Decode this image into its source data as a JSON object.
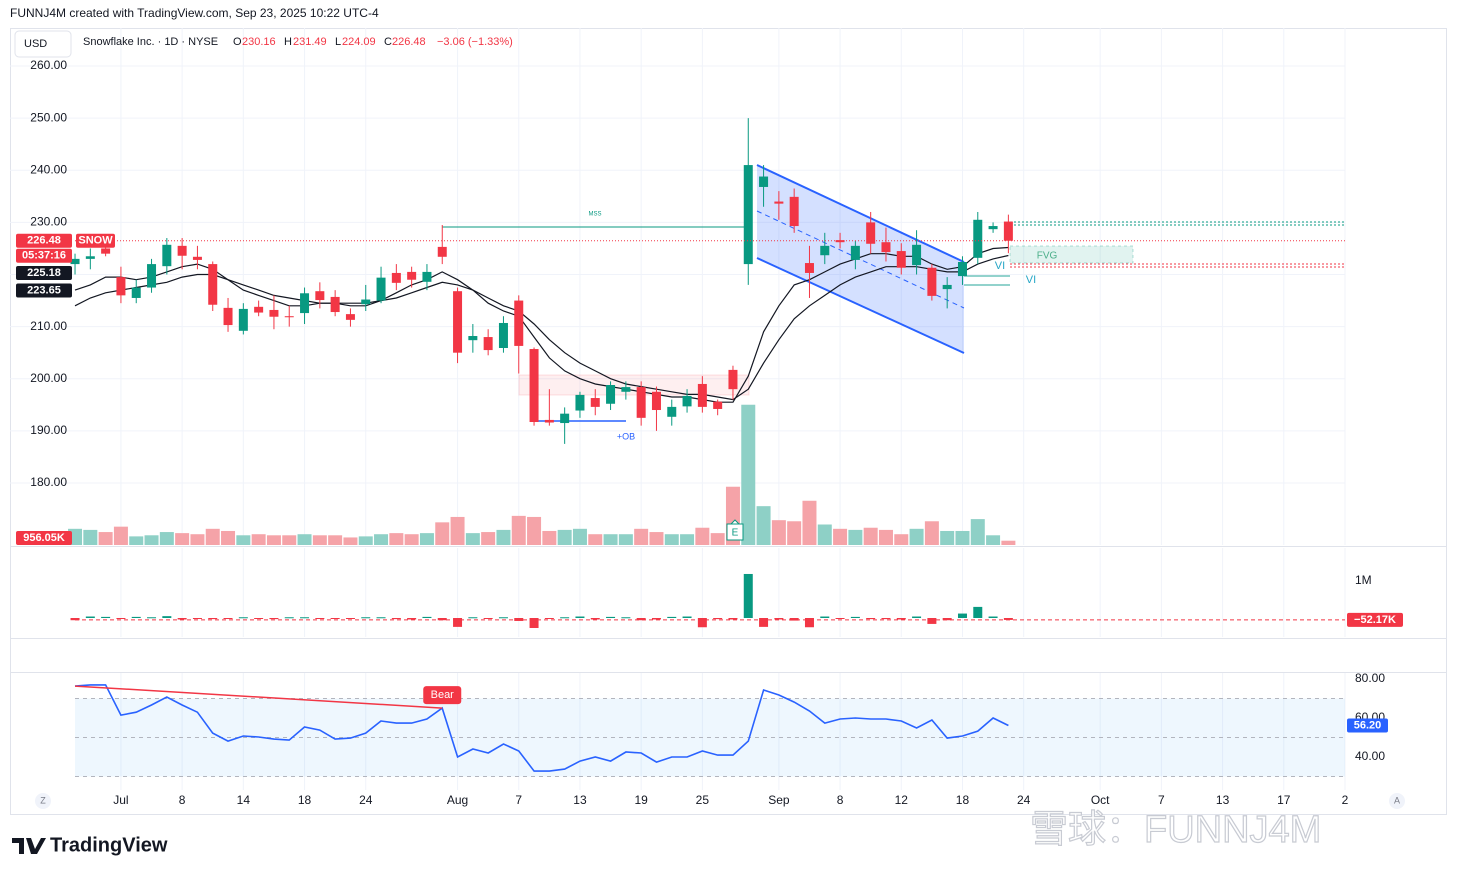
{
  "header": {
    "attribution": "FUNNJ4M created with TradingView.com, Sep 23, 2025 10:22 UTC-4",
    "currency": "USD",
    "symbol": "Snowflake Inc. · 1D · NYSE",
    "ohlc_keys": [
      "O",
      "H",
      "L",
      "C"
    ],
    "change": "−3.06 (−1.33%)",
    "ticker": "SNOW",
    "countdown": "05:37:16",
    "logo": "TradingView",
    "watermark": "雪球：FUNNJ4M",
    "corner_left": "Z",
    "corner_right": "A"
  },
  "chart_data": [
    {
      "type": "candlestick",
      "up_color": "#089981",
      "down_color": "#f23645",
      "grid": true,
      "categories": [
        "Jun 26",
        "Jun 27",
        "Jun 30",
        "Jul 1",
        "Jul 2",
        "Jul 3",
        "Jul 7",
        "Jul 8",
        "Jul 9",
        "Jul 10",
        "Jul 11",
        "Jul 14",
        "Jul 15",
        "Jul 16",
        "Jul 17",
        "Jul 18",
        "Jul 21",
        "Jul 22",
        "Jul 23",
        "Jul 24",
        "Jul 25",
        "Jul 28",
        "Jul 29",
        "Jul 30",
        "Jul 31",
        "Aug 1",
        "Aug 4",
        "Aug 5",
        "Aug 6",
        "Aug 7",
        "Aug 8",
        "Aug 11",
        "Aug 12",
        "Aug 13",
        "Aug 14",
        "Aug 15",
        "Aug 18",
        "Aug 19",
        "Aug 20",
        "Aug 21",
        "Aug 22",
        "Aug 25",
        "Aug 26",
        "Aug 27",
        "Aug 28",
        "Aug 29",
        "Sep 2",
        "Sep 3",
        "Sep 4",
        "Sep 5",
        "Sep 8",
        "Sep 9",
        "Sep 10",
        "Sep 11",
        "Sep 12",
        "Sep 15",
        "Sep 16",
        "Sep 17",
        "Sep 18",
        "Sep 19",
        "Sep 22",
        "Sep 23"
      ],
      "open": [
        222,
        223,
        225,
        219.5,
        215.5,
        217.5,
        221.6,
        225.5,
        223.4,
        222,
        213.6,
        209.2,
        213.8,
        213.2,
        212,
        212.6,
        216.8,
        215.7,
        212.4,
        214.3,
        215,
        220.3,
        220.5,
        218.6,
        225.3,
        216.8,
        207.4,
        208,
        205.9,
        215,
        205.7,
        192.1,
        191.5,
        193.9,
        196.3,
        195.2,
        197.5,
        198.4,
        197.5,
        192.7,
        194.7,
        199,
        195.6,
        201.7,
        222,
        236.8,
        234,
        234.9,
        222.2,
        223.7,
        226.6,
        222.8,
        230,
        226.2,
        224.5,
        221.8,
        221.3,
        217.2,
        219.7,
        223.2,
        228.7,
        230.16
      ],
      "high": [
        224,
        225,
        225.5,
        221.5,
        219,
        223,
        227,
        227,
        225.5,
        222.5,
        215.5,
        214.5,
        215,
        216,
        214,
        217.5,
        218.5,
        217,
        213.5,
        218,
        221.5,
        222,
        221.5,
        222,
        229.5,
        217.5,
        210.5,
        209.5,
        212,
        216,
        206,
        198,
        194.5,
        197.5,
        198,
        199.5,
        199.5,
        199.5,
        198.5,
        196,
        198,
        200.5,
        196,
        202.5,
        250,
        241,
        236,
        236.5,
        225.5,
        228,
        228,
        226.5,
        232,
        229,
        226,
        228.5,
        222,
        219.5,
        223.5,
        232,
        230,
        231.49
      ],
      "low": [
        220,
        221,
        223.5,
        214.5,
        214.5,
        216.5,
        220,
        221,
        221,
        213,
        209,
        208.5,
        212,
        209.5,
        210,
        210.5,
        213.5,
        212,
        210,
        213,
        214.5,
        217,
        217.5,
        217,
        222,
        203,
        205,
        204.5,
        205,
        201,
        191,
        191,
        187.5,
        192.5,
        193,
        194,
        196,
        191,
        190,
        191,
        193.5,
        193.5,
        193,
        196,
        218,
        233,
        230.5,
        228,
        215.5,
        222,
        225,
        221,
        224,
        222.5,
        220,
        220,
        215,
        213.5,
        218,
        222,
        228,
        224.09
      ],
      "close": [
        223,
        223.5,
        224,
        216,
        217.5,
        222,
        225.7,
        223.6,
        222.8,
        214.2,
        210.3,
        213.4,
        212.7,
        211.9,
        211.8,
        216.4,
        215.1,
        212.8,
        211.3,
        215.2,
        219.4,
        218.4,
        219,
        220.5,
        223.4,
        205,
        208.2,
        205.5,
        210.7,
        206.3,
        191.7,
        191.6,
        193.3,
        196.9,
        194.6,
        198.8,
        198.4,
        192.5,
        194,
        194.6,
        196.7,
        194.6,
        194.2,
        198,
        241,
        238.8,
        233.6,
        229.3,
        220.3,
        225.5,
        226.2,
        225.5,
        225.9,
        224.3,
        221.3,
        225.7,
        215.9,
        218,
        222.4,
        230.5,
        229.3,
        226.48
      ],
      "series": [
        {
          "color": "#131722",
          "values": [
            217,
            218,
            219.5,
            219.5,
            219,
            219.5,
            220.5,
            221.5,
            222,
            221,
            219,
            217,
            216,
            215,
            214,
            214,
            214.5,
            214.5,
            214,
            214,
            215,
            216.5,
            218,
            219,
            220.5,
            219,
            217,
            214.5,
            213,
            212,
            208,
            204,
            201.5,
            200,
            199,
            198.5,
            198,
            197.5,
            197,
            196.5,
            196.5,
            196,
            195.5,
            195.5,
            200.5,
            209,
            214,
            218,
            219,
            220.5,
            222,
            223,
            224,
            224,
            223.5,
            223.5,
            222,
            221,
            221.5,
            224,
            225,
            225.18
          ]
        },
        {
          "color": "#131722",
          "values": [
            214,
            215.5,
            216.5,
            217,
            217.5,
            218,
            218.5,
            219.5,
            220,
            220,
            219,
            218,
            217,
            216,
            215.5,
            215,
            214.5,
            214.5,
            214.5,
            214.5,
            215,
            215.5,
            216.5,
            217.5,
            218.5,
            218,
            217,
            215.5,
            214,
            213,
            210.5,
            207.5,
            205,
            203,
            201.5,
            200,
            199,
            198.5,
            198,
            197.5,
            197,
            197,
            196.5,
            196,
            198,
            203,
            207.5,
            211.5,
            214,
            216,
            218,
            219.5,
            220.5,
            221.5,
            221.5,
            221.5,
            221,
            220.5,
            220.5,
            222,
            223,
            223.65
          ]
        }
      ],
      "ylim": [
        168.1,
        267.3
      ],
      "yticks": [
        {
          "value": 180,
          "label": "180.00"
        },
        {
          "value": 190,
          "label": "190.00"
        },
        {
          "value": 200,
          "label": "200.00"
        },
        {
          "value": 210,
          "label": "210.00"
        },
        {
          "value": 220,
          "label": "220.00"
        },
        {
          "value": 230,
          "label": "230.00"
        },
        {
          "value": 240,
          "label": "240.00"
        },
        {
          "value": 250,
          "label": "250.00"
        },
        {
          "value": 260,
          "label": "260.00"
        }
      ],
      "xlim": [
        -4.25,
        83
      ],
      "xticks": [
        {
          "value": 3,
          "label": "Jul"
        },
        {
          "value": 7,
          "label": "8"
        },
        {
          "value": 11,
          "label": "14"
        },
        {
          "value": 15,
          "label": "18"
        },
        {
          "value": 19,
          "label": "24"
        },
        {
          "value": 25,
          "label": "Aug"
        },
        {
          "value": 29,
          "label": "7"
        },
        {
          "value": 33,
          "label": "13"
        },
        {
          "value": 37,
          "label": "19"
        },
        {
          "value": 41,
          "label": "25"
        },
        {
          "value": 46,
          "label": "Sep"
        },
        {
          "value": 50,
          "label": "8"
        },
        {
          "value": 54,
          "label": "12"
        },
        {
          "value": 58,
          "label": "18"
        },
        {
          "value": 62,
          "label": "24"
        },
        {
          "value": 67,
          "label": "Oct"
        },
        {
          "value": 71,
          "label": "7"
        },
        {
          "value": 75,
          "label": "13"
        },
        {
          "value": 79,
          "label": "17"
        },
        {
          "value": 83,
          "label": "2"
        }
      ],
      "annotations": [
        "MSS",
        "+OB",
        "FVG",
        "VI",
        "VI",
        "E"
      ]
    },
    {
      "type": "bar",
      "up_color": "#8ed0c6",
      "down_color": "#f5a3a8",
      "values": [
        3600,
        3360,
        2880,
        4080,
        1920,
        2160,
        2880,
        2640,
        2400,
        3600,
        3120,
        2160,
        2400,
        2160,
        2160,
        2400,
        2160,
        2160,
        1680,
        1920,
        2400,
        2640,
        2400,
        2640,
        5040,
        6240,
        2640,
        2880,
        3360,
        6480,
        6240,
        3120,
        3360,
        3600,
        2400,
        2400,
        2400,
        3600,
        2880,
        2400,
        2400,
        3840,
        2640,
        12960,
        31200,
        8640,
        5520,
        5280,
        9840,
        4560,
        3600,
        3360,
        3840,
        3360,
        2400,
        3600,
        5280,
        3120,
        3120,
        5760,
        2160,
        956.05
      ],
      "value_labels": [
        null,
        null,
        null,
        null,
        null,
        null,
        null,
        null,
        null,
        null,
        null,
        null,
        null,
        null,
        null,
        null,
        null,
        null,
        null,
        null,
        null,
        null,
        null,
        null,
        null,
        null,
        null,
        null,
        null,
        null,
        null,
        null,
        null,
        null,
        null,
        null,
        null,
        null,
        null,
        null,
        null,
        null,
        null,
        null,
        null,
        null,
        null,
        null,
        null,
        null,
        null,
        null,
        null,
        null,
        null,
        null,
        null,
        null,
        null,
        null,
        null,
        "956.05K"
      ],
      "ylim": [
        0,
        115000
      ]
    },
    {
      "type": "bar",
      "positive_color": "#089981",
      "negative_color": "#f23645",
      "values": [
        -60000,
        40000,
        30000,
        -20000,
        30000,
        20000,
        50000,
        -40000,
        -20000,
        -30000,
        -20000,
        20000,
        -20000,
        -30000,
        20000,
        20000,
        -20000,
        -20000,
        -10000,
        20000,
        20000,
        -30000,
        -40000,
        30000,
        -60000,
        -240000,
        20000,
        -20000,
        20000,
        -80000,
        -270000,
        -20000,
        20000,
        40000,
        -40000,
        30000,
        20000,
        -60000,
        -40000,
        30000,
        40000,
        -250000,
        -30000,
        -40000,
        1190000,
        -240000,
        -40000,
        -70000,
        -250000,
        40000,
        -20000,
        30000,
        -30000,
        -30000,
        -40000,
        40000,
        -160000,
        -60000,
        120000,
        300000,
        40000,
        -52170
      ],
      "value_labels": [
        null,
        null,
        null,
        null,
        null,
        null,
        null,
        null,
        null,
        null,
        null,
        null,
        null,
        null,
        null,
        null,
        null,
        null,
        null,
        null,
        null,
        null,
        null,
        null,
        null,
        null,
        null,
        null,
        null,
        null,
        null,
        null,
        null,
        null,
        null,
        null,
        null,
        null,
        null,
        null,
        null,
        null,
        null,
        null,
        null,
        null,
        null,
        null,
        null,
        null,
        null,
        null,
        null,
        null,
        null,
        null,
        null,
        null,
        null,
        null,
        null,
        "−52.17K"
      ],
      "ylim": [
        -513500,
        1891900
      ],
      "yticks": [
        {
          "value": 1000000,
          "label": "1M"
        }
      ]
    },
    {
      "type": "line",
      "color": "#2962ff",
      "values": [
        76.4,
        77,
        77,
        61.5,
        63,
        66.7,
        70.8,
        66.7,
        63,
        52.3,
        48.2,
        50.8,
        50.3,
        49.2,
        48.7,
        55.4,
        53.8,
        49.2,
        49.7,
        52.3,
        58.5,
        57.4,
        57.4,
        59.5,
        65.1,
        40,
        44.1,
        42.1,
        46.7,
        43.1,
        32.8,
        32.8,
        33.8,
        37.9,
        40,
        37.9,
        42.6,
        42.1,
        37.4,
        40,
        40,
        43.1,
        41,
        41,
        48.2,
        74.4,
        71.8,
        68.2,
        63.6,
        57.4,
        59.5,
        60,
        59.5,
        59.5,
        58.5,
        54.9,
        59,
        49.7,
        50.8,
        53.3,
        60,
        56.2
      ],
      "value_labels": [
        null,
        null,
        null,
        null,
        null,
        null,
        null,
        null,
        null,
        null,
        null,
        null,
        null,
        null,
        null,
        null,
        null,
        null,
        null,
        null,
        null,
        null,
        null,
        null,
        null,
        null,
        null,
        null,
        null,
        null,
        null,
        null,
        null,
        null,
        null,
        null,
        null,
        null,
        null,
        null,
        null,
        null,
        null,
        null,
        null,
        null,
        null,
        null,
        null,
        null,
        null,
        null,
        null,
        null,
        null,
        null,
        null,
        null,
        null,
        null,
        null,
        "56.20"
      ],
      "ylim": [
        23.1,
        83.1
      ],
      "yticks": [
        {
          "value": 40,
          "label": "40.00"
        },
        {
          "value": 60,
          "label": "60.00"
        },
        {
          "value": 80,
          "label": "80.00"
        }
      ],
      "band_levels": [
        30,
        50,
        70
      ],
      "annotation": "Bear"
    }
  ]
}
